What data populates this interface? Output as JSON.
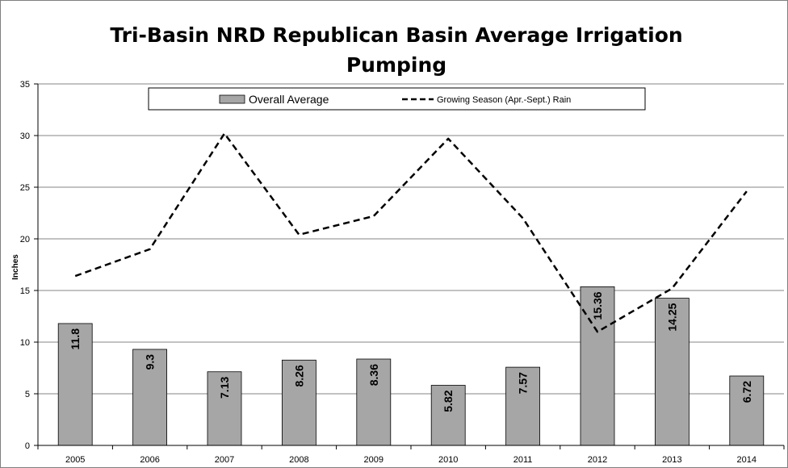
{
  "chart_data": {
    "type": "bar",
    "title_line1": "Tri-Basin NRD Republican Basin Average Irrigation",
    "title_line2": "Pumping",
    "xlabel": "",
    "ylabel": "Inches",
    "ylim": [
      0,
      35
    ],
    "yticks": [
      0,
      5,
      10,
      15,
      20,
      25,
      30,
      35
    ],
    "grid": true,
    "legend_position": "top",
    "categories": [
      "2005",
      "2006",
      "2007",
      "2008",
      "2009",
      "2010",
      "2011",
      "2012",
      "2013",
      "2014"
    ],
    "series": [
      {
        "name": "Overall Average",
        "type": "bar",
        "color": "#a6a6a6",
        "values": [
          11.8,
          9.3,
          7.13,
          8.26,
          8.36,
          5.82,
          7.57,
          15.36,
          14.25,
          6.72
        ],
        "labels": [
          "11.8",
          "9.3",
          "7.13",
          "8.26",
          "8.36",
          "5.82",
          "7.57",
          "15.36",
          "14.25",
          "6.72"
        ]
      },
      {
        "name": "Growing Season (Apr.-Sept.) Rain",
        "type": "line",
        "style": "dashed",
        "color": "#000000",
        "values": [
          16.4,
          19.0,
          30.2,
          20.4,
          22.2,
          29.7,
          22.0,
          11.0,
          15.2,
          24.6
        ]
      }
    ]
  }
}
